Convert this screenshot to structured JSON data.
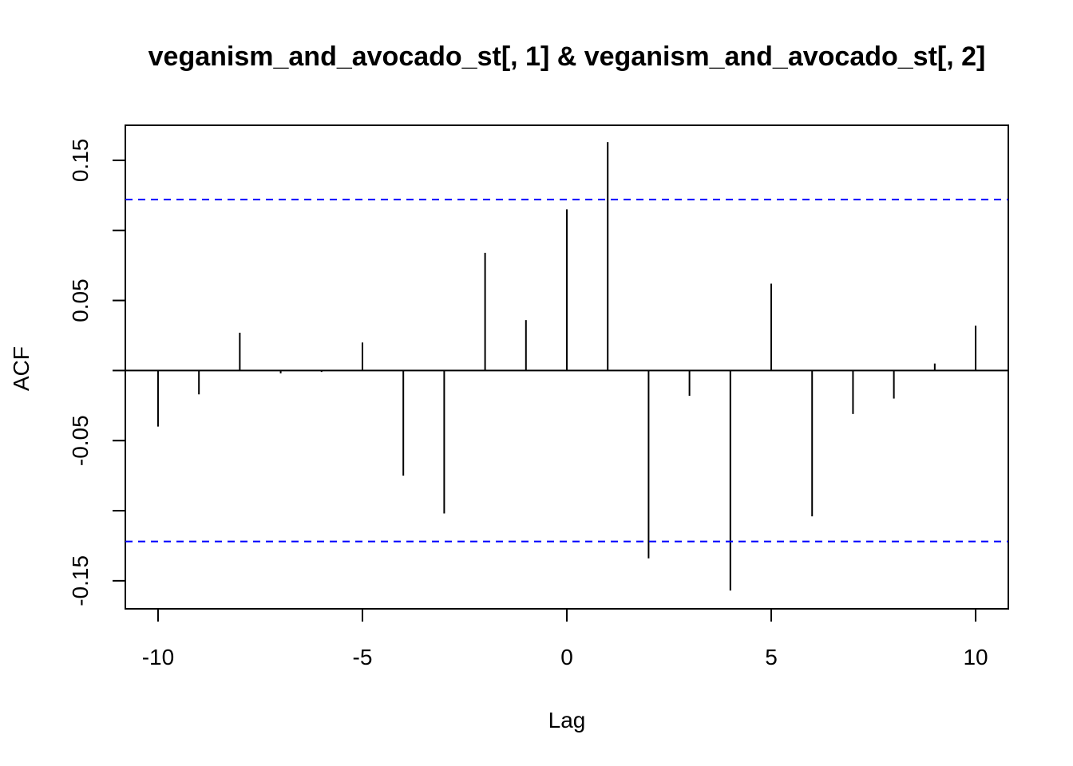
{
  "chart_data": {
    "type": "bar",
    "title": "veganism_and_avocado_st[, 1] & veganism_and_avocado_st[, 2]",
    "xlabel": "Lag",
    "ylabel": "ACF",
    "xlim": [
      -10.8,
      10.8
    ],
    "ylim": [
      -0.17,
      0.175
    ],
    "x_ticks": [
      -10,
      -5,
      0,
      5,
      10
    ],
    "x_tick_labels": [
      "-10",
      "-5",
      "0",
      "5",
      "10"
    ],
    "y_ticks": [
      -0.15,
      -0.1,
      -0.05,
      0,
      0.05,
      0.1,
      0.15
    ],
    "y_tick_labels": [
      "-0.15",
      "",
      "-0.05",
      "",
      "0.05",
      "",
      "0.15"
    ],
    "lags": [
      -10,
      -9,
      -8,
      -7,
      -6,
      -5,
      -4,
      -3,
      -2,
      -1,
      0,
      1,
      2,
      3,
      4,
      5,
      6,
      7,
      8,
      9,
      10
    ],
    "values": [
      -0.04,
      -0.017,
      0.027,
      -0.002,
      -0.001,
      0.02,
      -0.075,
      -0.102,
      0.084,
      0.036,
      0.115,
      0.163,
      -0.134,
      -0.018,
      -0.157,
      0.062,
      -0.104,
      -0.031,
      -0.02,
      0.005,
      0.032
    ],
    "confidence_bound": 0.122,
    "colors": {
      "bars": "#000000",
      "confidence": "#0000ff",
      "axes": "#000000"
    },
    "grid": false
  }
}
